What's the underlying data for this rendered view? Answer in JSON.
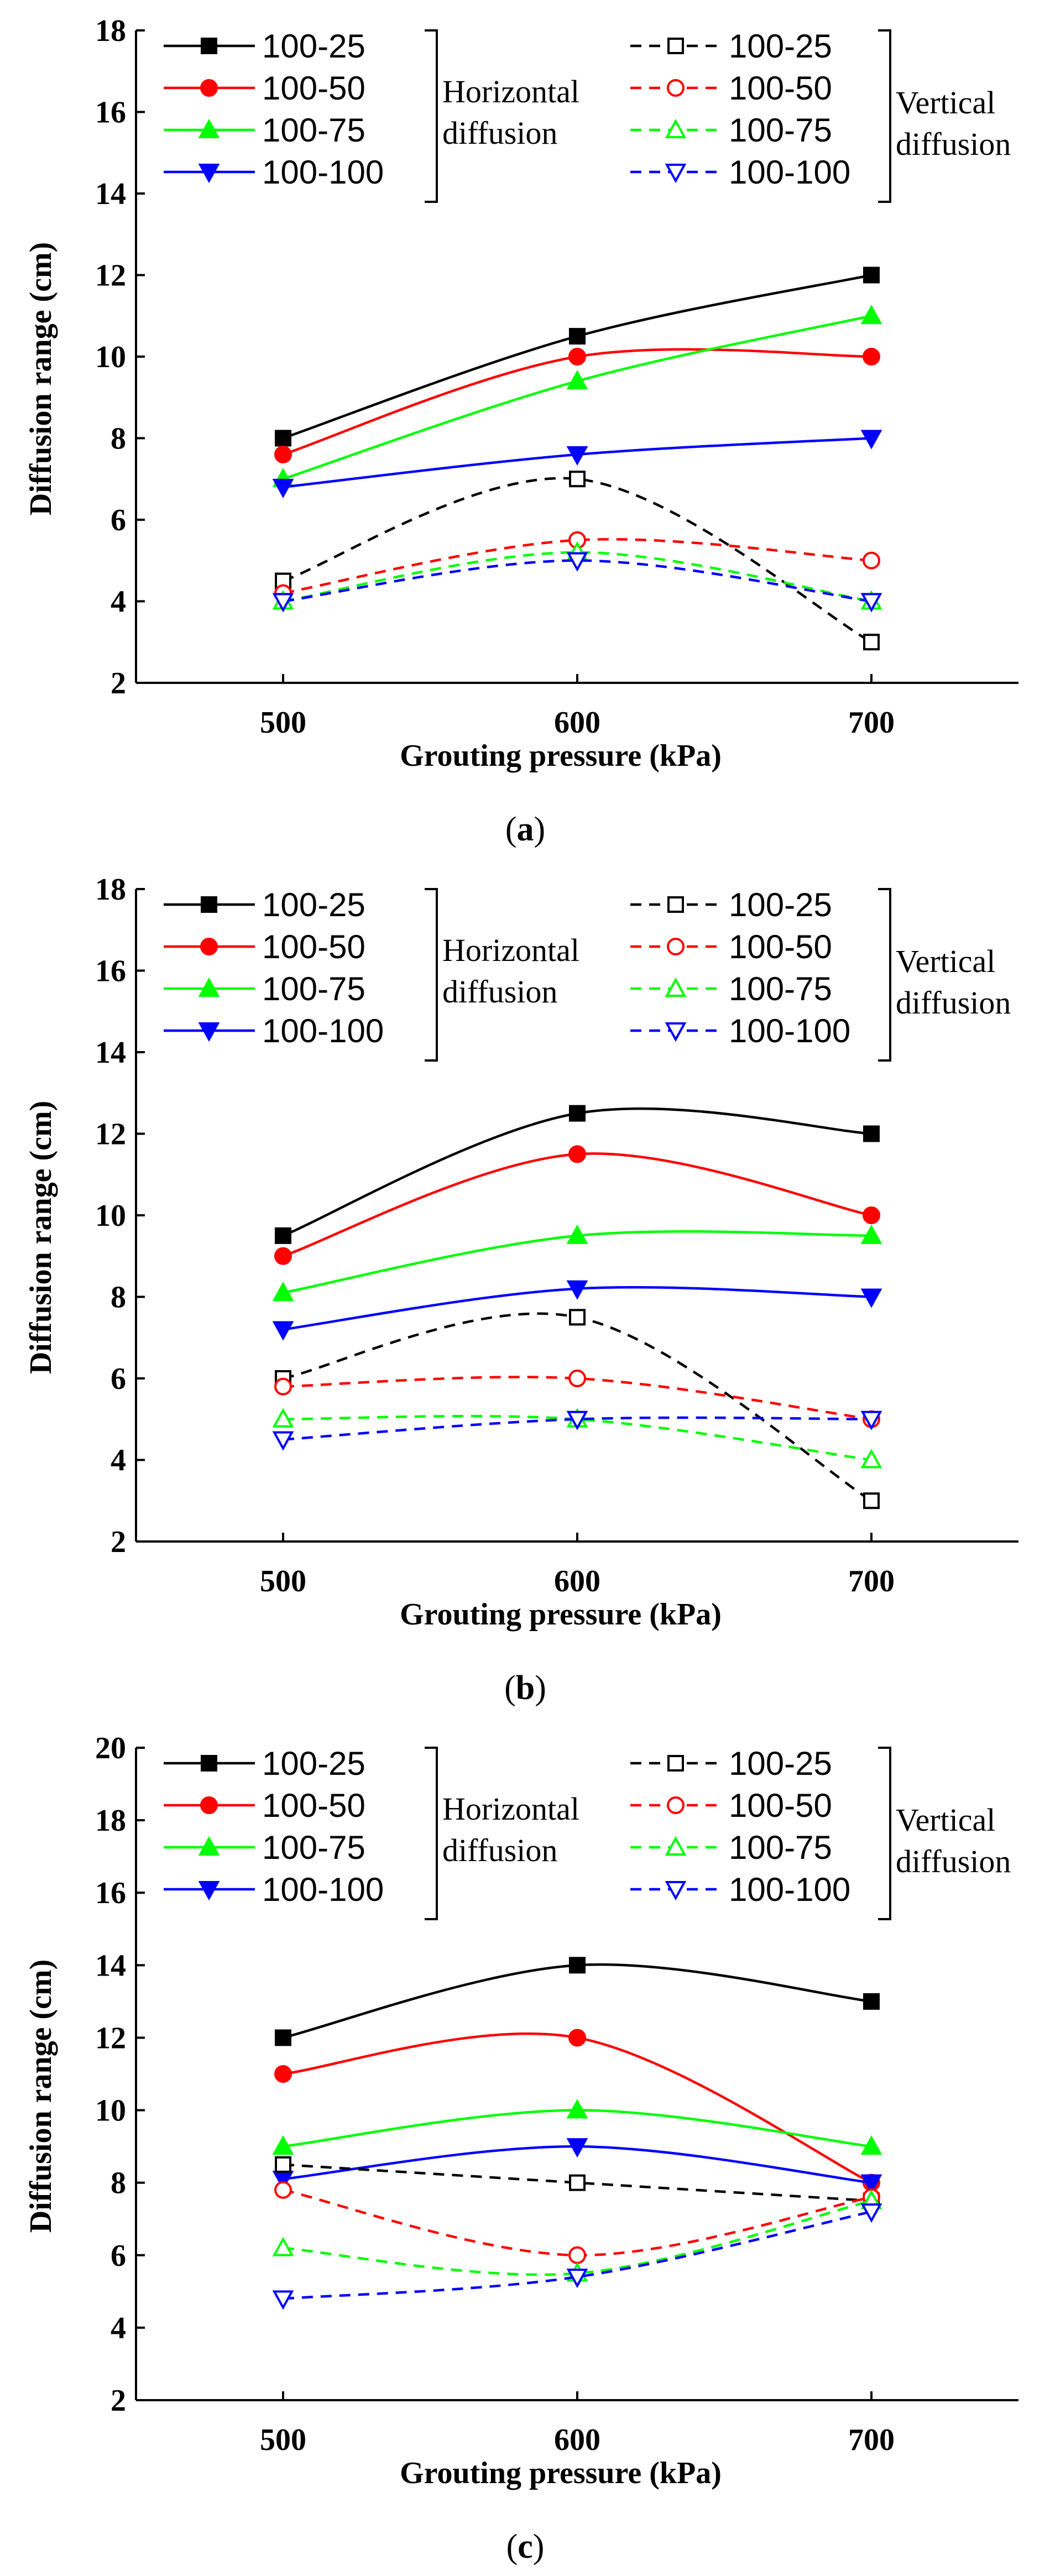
{
  "chart_data": [
    {
      "type": "line",
      "panel": "a",
      "caption_letter": "a",
      "xlabel": "Grouting pressure (kPa)",
      "ylabel": "Diffusion range (cm)",
      "x": [
        500,
        600,
        700
      ],
      "xlim": [
        450,
        750
      ],
      "ylim": [
        2,
        18
      ],
      "yticks": [
        2,
        4,
        6,
        8,
        10,
        12,
        14,
        16,
        18
      ],
      "group_labels": {
        "horizontal": [
          "Horizontal",
          "diffusion"
        ],
        "vertical": [
          "Vertical",
          "diffusion"
        ]
      },
      "series": [
        {
          "name": "100-25",
          "group": "horizontal",
          "color": "#000000",
          "dash": false,
          "marker": "square",
          "filled": true,
          "values": [
            8,
            10.5,
            12
          ]
        },
        {
          "name": "100-50",
          "group": "horizontal",
          "color": "#ff0000",
          "dash": false,
          "marker": "circle",
          "filled": true,
          "values": [
            7.6,
            10,
            10
          ]
        },
        {
          "name": "100-75",
          "group": "horizontal",
          "color": "#00ff00",
          "dash": false,
          "marker": "triangle-up",
          "filled": true,
          "values": [
            7,
            9.4,
            11
          ]
        },
        {
          "name": "100-100",
          "group": "horizontal",
          "color": "#0000ff",
          "dash": false,
          "marker": "triangle-down",
          "filled": true,
          "values": [
            6.8,
            7.6,
            8
          ]
        },
        {
          "name": "100-25",
          "group": "vertical",
          "color": "#000000",
          "dash": true,
          "marker": "square",
          "filled": false,
          "values": [
            4.5,
            7,
            3
          ]
        },
        {
          "name": "100-50",
          "group": "vertical",
          "color": "#ff0000",
          "dash": true,
          "marker": "circle",
          "filled": false,
          "values": [
            4.2,
            5.5,
            5
          ]
        },
        {
          "name": "100-75",
          "group": "vertical",
          "color": "#00ff00",
          "dash": true,
          "marker": "triangle-up",
          "filled": false,
          "values": [
            4,
            5.2,
            4
          ]
        },
        {
          "name": "100-100",
          "group": "vertical",
          "color": "#0000ff",
          "dash": true,
          "marker": "triangle-down",
          "filled": false,
          "values": [
            4,
            5,
            4
          ]
        }
      ]
    },
    {
      "type": "line",
      "panel": "b",
      "caption_letter": "b",
      "xlabel": "Grouting pressure (kPa)",
      "ylabel": "Diffusion range (cm)",
      "x": [
        500,
        600,
        700
      ],
      "xlim": [
        450,
        750
      ],
      "ylim": [
        2,
        18
      ],
      "yticks": [
        2,
        4,
        6,
        8,
        10,
        12,
        14,
        16,
        18
      ],
      "group_labels": {
        "horizontal": [
          "Horizontal",
          "diffusion"
        ],
        "vertical": [
          "Vertical",
          "diffusion"
        ]
      },
      "series": [
        {
          "name": "100-25",
          "group": "horizontal",
          "color": "#000000",
          "dash": false,
          "marker": "square",
          "filled": true,
          "values": [
            9.5,
            12.5,
            12
          ]
        },
        {
          "name": "100-50",
          "group": "horizontal",
          "color": "#ff0000",
          "dash": false,
          "marker": "circle",
          "filled": true,
          "values": [
            9,
            11.5,
            10
          ]
        },
        {
          "name": "100-75",
          "group": "horizontal",
          "color": "#00ff00",
          "dash": false,
          "marker": "triangle-up",
          "filled": true,
          "values": [
            8.1,
            9.5,
            9.5
          ]
        },
        {
          "name": "100-100",
          "group": "horizontal",
          "color": "#0000ff",
          "dash": false,
          "marker": "triangle-down",
          "filled": true,
          "values": [
            7.2,
            8.2,
            8
          ]
        },
        {
          "name": "100-25",
          "group": "vertical",
          "color": "#000000",
          "dash": true,
          "marker": "square",
          "filled": false,
          "values": [
            6,
            7.5,
            3
          ]
        },
        {
          "name": "100-50",
          "group": "vertical",
          "color": "#ff0000",
          "dash": true,
          "marker": "circle",
          "filled": false,
          "values": [
            5.8,
            6,
            5
          ]
        },
        {
          "name": "100-75",
          "group": "vertical",
          "color": "#00ff00",
          "dash": true,
          "marker": "triangle-up",
          "filled": false,
          "values": [
            5,
            5,
            4
          ]
        },
        {
          "name": "100-100",
          "group": "vertical",
          "color": "#0000ff",
          "dash": true,
          "marker": "triangle-down",
          "filled": false,
          "values": [
            4.5,
            5,
            5
          ]
        }
      ]
    },
    {
      "type": "line",
      "panel": "c",
      "caption_letter": "c",
      "xlabel": "Grouting pressure (kPa)",
      "ylabel": "Diffusion range (cm)",
      "x": [
        500,
        600,
        700
      ],
      "xlim": [
        450,
        750
      ],
      "ylim": [
        2,
        20
      ],
      "yticks": [
        2,
        4,
        6,
        8,
        10,
        12,
        14,
        16,
        18,
        20
      ],
      "group_labels": {
        "horizontal": [
          "Horizontal",
          "diffusion"
        ],
        "vertical": [
          "Vertical",
          "diffusion"
        ]
      },
      "series": [
        {
          "name": "100-25",
          "group": "horizontal",
          "color": "#000000",
          "dash": false,
          "marker": "square",
          "filled": true,
          "values": [
            12,
            14,
            13
          ]
        },
        {
          "name": "100-50",
          "group": "horizontal",
          "color": "#ff0000",
          "dash": false,
          "marker": "circle",
          "filled": true,
          "values": [
            11,
            12,
            8
          ]
        },
        {
          "name": "100-75",
          "group": "horizontal",
          "color": "#00ff00",
          "dash": false,
          "marker": "triangle-up",
          "filled": true,
          "values": [
            9,
            10,
            9
          ]
        },
        {
          "name": "100-100",
          "group": "horizontal",
          "color": "#0000ff",
          "dash": false,
          "marker": "triangle-down",
          "filled": true,
          "values": [
            8.1,
            9,
            8
          ]
        },
        {
          "name": "100-25",
          "group": "vertical",
          "color": "#000000",
          "dash": true,
          "marker": "square",
          "filled": false,
          "values": [
            8.5,
            8,
            7.5
          ]
        },
        {
          "name": "100-50",
          "group": "vertical",
          "color": "#ff0000",
          "dash": true,
          "marker": "circle",
          "filled": false,
          "values": [
            7.8,
            6,
            7.6
          ]
        },
        {
          "name": "100-75",
          "group": "vertical",
          "color": "#00ff00",
          "dash": true,
          "marker": "triangle-up",
          "filled": false,
          "values": [
            6.2,
            5.5,
            7.5
          ]
        },
        {
          "name": "100-100",
          "group": "vertical",
          "color": "#0000ff",
          "dash": true,
          "marker": "triangle-down",
          "filled": false,
          "values": [
            4.8,
            5.4,
            7.2
          ]
        }
      ]
    }
  ]
}
